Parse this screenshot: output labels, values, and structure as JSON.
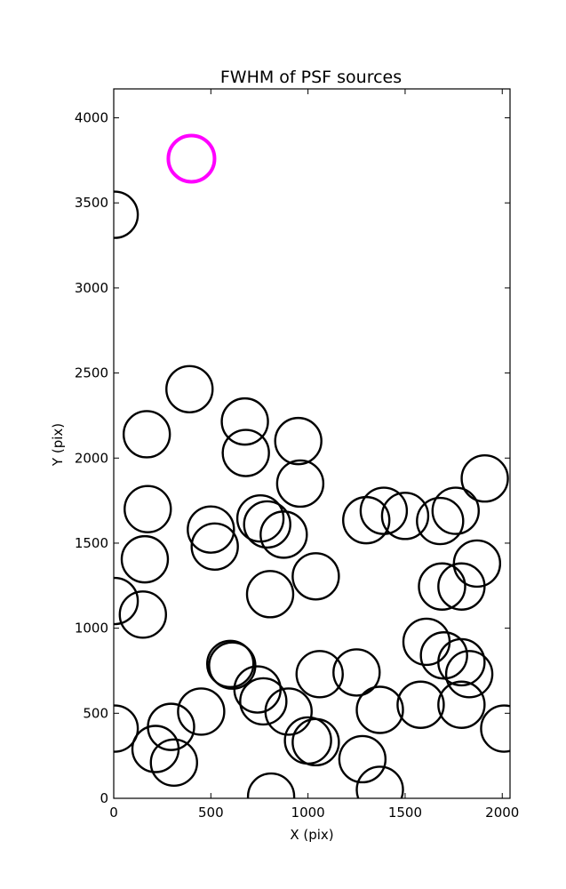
{
  "chart_data": {
    "type": "scatter",
    "title": "FWHM of PSF sources",
    "xlabel": "X (pix)",
    "ylabel": "Y (pix)",
    "xlim": [
      0,
      2040
    ],
    "ylim": [
      0,
      4170
    ],
    "xticks": [
      0,
      500,
      1000,
      1500,
      2000
    ],
    "yticks": [
      0,
      500,
      1000,
      1500,
      2000,
      2500,
      3000,
      3500,
      4000
    ],
    "grid": false,
    "marker": "open circle",
    "series": [
      {
        "color": "#000000",
        "points": [
          {
            "x": 5,
            "y": 3430
          },
          {
            "x": 390,
            "y": 2405
          },
          {
            "x": 675,
            "y": 2215
          },
          {
            "x": 170,
            "y": 2140
          },
          {
            "x": 680,
            "y": 2030
          },
          {
            "x": 950,
            "y": 2100
          },
          {
            "x": 960,
            "y": 1850
          },
          {
            "x": 1910,
            "y": 1880
          },
          {
            "x": 175,
            "y": 1700
          },
          {
            "x": 500,
            "y": 1580
          },
          {
            "x": 520,
            "y": 1480
          },
          {
            "x": 755,
            "y": 1645
          },
          {
            "x": 790,
            "y": 1610
          },
          {
            "x": 875,
            "y": 1550
          },
          {
            "x": 160,
            "y": 1405
          },
          {
            "x": 1300,
            "y": 1635
          },
          {
            "x": 1390,
            "y": 1690
          },
          {
            "x": 1500,
            "y": 1660
          },
          {
            "x": 1680,
            "y": 1630
          },
          {
            "x": 1760,
            "y": 1690
          },
          {
            "x": 1870,
            "y": 1380
          },
          {
            "x": 1040,
            "y": 1305
          },
          {
            "x": 805,
            "y": 1200
          },
          {
            "x": 1690,
            "y": 1245
          },
          {
            "x": 1790,
            "y": 1245
          },
          {
            "x": 5,
            "y": 1160
          },
          {
            "x": 150,
            "y": 1080
          },
          {
            "x": 600,
            "y": 790
          },
          {
            "x": 610,
            "y": 780
          },
          {
            "x": 1610,
            "y": 920
          },
          {
            "x": 1700,
            "y": 840
          },
          {
            "x": 1790,
            "y": 800
          },
          {
            "x": 1830,
            "y": 730
          },
          {
            "x": 1060,
            "y": 730
          },
          {
            "x": 1250,
            "y": 740
          },
          {
            "x": 740,
            "y": 640
          },
          {
            "x": 770,
            "y": 570
          },
          {
            "x": 450,
            "y": 510
          },
          {
            "x": 900,
            "y": 510
          },
          {
            "x": 1370,
            "y": 520
          },
          {
            "x": 1580,
            "y": 550
          },
          {
            "x": 1790,
            "y": 550
          },
          {
            "x": 2010,
            "y": 410
          },
          {
            "x": 5,
            "y": 410
          },
          {
            "x": 295,
            "y": 420
          },
          {
            "x": 215,
            "y": 290
          },
          {
            "x": 310,
            "y": 210
          },
          {
            "x": 1000,
            "y": 340
          },
          {
            "x": 1040,
            "y": 330
          },
          {
            "x": 1280,
            "y": 230
          },
          {
            "x": 810,
            "y": 10
          },
          {
            "x": 1370,
            "y": 50
          }
        ]
      },
      {
        "color": "#ff00ff",
        "points": [
          {
            "x": 400,
            "y": 3760
          }
        ]
      }
    ]
  }
}
